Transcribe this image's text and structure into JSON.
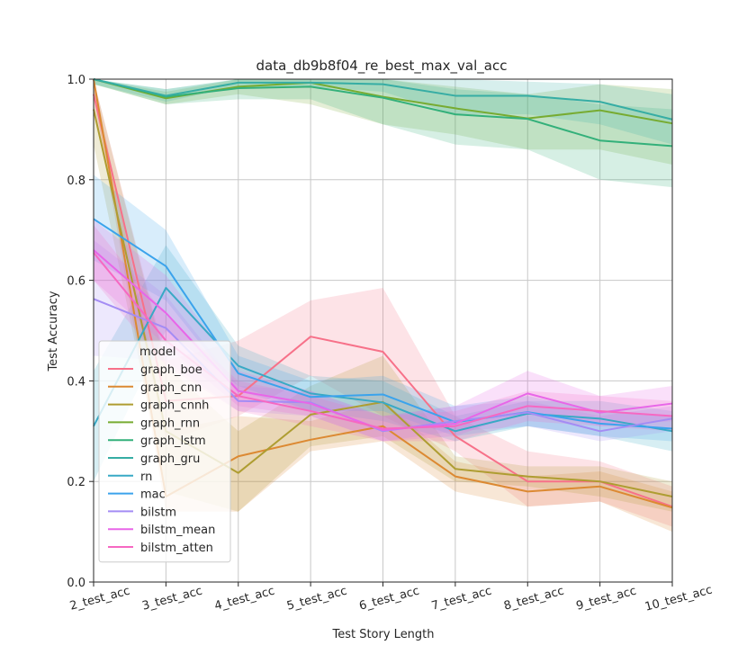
{
  "chart_data": {
    "type": "line",
    "title": "data_db9b8f04_re_best_max_val_acc",
    "xlabel": "Test Story Length",
    "ylabel": "Test Accuracy",
    "ylim": [
      0.0,
      1.0
    ],
    "yticks": [
      "0.0",
      "0.2",
      "0.4",
      "0.6",
      "0.8",
      "1.0"
    ],
    "grid": true,
    "legend_title": "model",
    "legend_position": "lower-left",
    "categories": [
      "2_test_acc",
      "3_test_acc",
      "4_test_acc",
      "5_test_acc",
      "6_test_acc",
      "7_test_acc",
      "8_test_acc",
      "9_test_acc",
      "10_test_acc"
    ],
    "series": [
      {
        "name": "graph_boe",
        "color": "#f77189",
        "values": [
          0.97,
          0.36,
          0.37,
          0.488,
          0.458,
          0.29,
          0.2,
          0.2,
          0.15
        ],
        "lower": [
          0.94,
          0.28,
          0.33,
          0.41,
          0.33,
          0.26,
          0.15,
          0.16,
          0.11
        ],
        "upper": [
          1.0,
          0.44,
          0.48,
          0.56,
          0.585,
          0.33,
          0.26,
          0.24,
          0.19
        ]
      },
      {
        "name": "graph_cnn",
        "color": "#dc8932",
        "values": [
          1.0,
          0.17,
          0.25,
          0.283,
          0.31,
          0.21,
          0.18,
          0.19,
          0.148
        ],
        "lower": [
          0.97,
          0.14,
          0.14,
          0.26,
          0.28,
          0.18,
          0.15,
          0.16,
          0.1
        ],
        "upper": [
          1.0,
          0.3,
          0.33,
          0.32,
          0.36,
          0.24,
          0.21,
          0.22,
          0.18
        ]
      },
      {
        "name": "graph_cnnh",
        "color": "#ae9d31",
        "values": [
          0.94,
          0.3,
          0.217,
          0.333,
          0.358,
          0.225,
          0.21,
          0.2,
          0.17
        ],
        "lower": [
          0.87,
          0.18,
          0.14,
          0.27,
          0.29,
          0.2,
          0.19,
          0.17,
          0.14
        ],
        "upper": [
          1.0,
          0.43,
          0.3,
          0.39,
          0.45,
          0.25,
          0.23,
          0.23,
          0.2
        ]
      },
      {
        "name": "graph_rnn",
        "color": "#77ab31",
        "values": [
          1.0,
          0.962,
          0.985,
          0.993,
          0.965,
          0.942,
          0.922,
          0.938,
          0.912
        ],
        "lower": [
          0.99,
          0.95,
          0.97,
          0.95,
          0.91,
          0.89,
          0.86,
          0.86,
          0.83
        ],
        "upper": [
          1.0,
          0.975,
          1.0,
          1.0,
          1.0,
          0.985,
          0.97,
          0.99,
          0.98
        ]
      },
      {
        "name": "graph_lstm",
        "color": "#33b07a",
        "values": [
          1.0,
          0.965,
          0.982,
          0.985,
          0.963,
          0.93,
          0.921,
          0.878,
          0.867
        ],
        "lower": [
          0.99,
          0.95,
          0.96,
          0.96,
          0.91,
          0.87,
          0.86,
          0.8,
          0.785
        ],
        "upper": [
          1.0,
          0.98,
          1.0,
          1.0,
          1.0,
          0.98,
          0.97,
          0.95,
          0.94
        ]
      },
      {
        "name": "graph_gru",
        "color": "#36ada4",
        "values": [
          1.0,
          0.967,
          0.993,
          0.993,
          0.99,
          0.967,
          0.967,
          0.955,
          0.92
        ],
        "lower": [
          0.99,
          0.955,
          0.985,
          0.985,
          0.975,
          0.93,
          0.93,
          0.91,
          0.87
        ],
        "upper": [
          1.0,
          0.98,
          1.0,
          1.0,
          1.0,
          1.0,
          0.995,
          0.99,
          0.97
        ]
      },
      {
        "name": "rn",
        "color": "#38a9c5",
        "values": [
          0.31,
          0.585,
          0.43,
          0.375,
          0.357,
          0.3,
          0.335,
          0.325,
          0.3
        ],
        "lower": [
          0.2,
          0.5,
          0.39,
          0.34,
          0.32,
          0.28,
          0.31,
          0.29,
          0.26
        ],
        "upper": [
          0.42,
          0.67,
          0.47,
          0.41,
          0.4,
          0.33,
          0.36,
          0.36,
          0.34
        ]
      },
      {
        "name": "mac",
        "color": "#3ba3ec",
        "values": [
          0.722,
          0.628,
          0.415,
          0.368,
          0.373,
          0.318,
          0.338,
          0.315,
          0.305
        ],
        "lower": [
          0.64,
          0.56,
          0.38,
          0.34,
          0.34,
          0.29,
          0.31,
          0.29,
          0.28
        ],
        "upper": [
          0.81,
          0.7,
          0.45,
          0.4,
          0.41,
          0.35,
          0.37,
          0.34,
          0.33
        ]
      },
      {
        "name": "bilstm",
        "color": "#a48cf4",
        "values": [
          0.563,
          0.505,
          0.36,
          0.357,
          0.3,
          0.32,
          0.337,
          0.3,
          0.325
        ],
        "lower": [
          0.45,
          0.44,
          0.34,
          0.33,
          0.28,
          0.3,
          0.31,
          0.28,
          0.3
        ],
        "upper": [
          0.68,
          0.57,
          0.39,
          0.38,
          0.33,
          0.35,
          0.36,
          0.33,
          0.35
        ]
      },
      {
        "name": "bilstm_mean",
        "color": "#e866e8",
        "values": [
          0.66,
          0.535,
          0.38,
          0.355,
          0.302,
          0.315,
          0.375,
          0.337,
          0.355
        ],
        "lower": [
          0.6,
          0.47,
          0.35,
          0.33,
          0.28,
          0.29,
          0.34,
          0.31,
          0.32
        ],
        "upper": [
          0.72,
          0.61,
          0.42,
          0.38,
          0.33,
          0.35,
          0.42,
          0.37,
          0.39
        ]
      },
      {
        "name": "bilstm_atten",
        "color": "#f668c2",
        "values": [
          0.655,
          0.48,
          0.37,
          0.34,
          0.305,
          0.31,
          0.35,
          0.34,
          0.33
        ],
        "lower": [
          0.6,
          0.43,
          0.34,
          0.31,
          0.28,
          0.28,
          0.32,
          0.31,
          0.3
        ],
        "upper": [
          0.71,
          0.53,
          0.4,
          0.37,
          0.33,
          0.34,
          0.38,
          0.37,
          0.36
        ]
      }
    ]
  }
}
